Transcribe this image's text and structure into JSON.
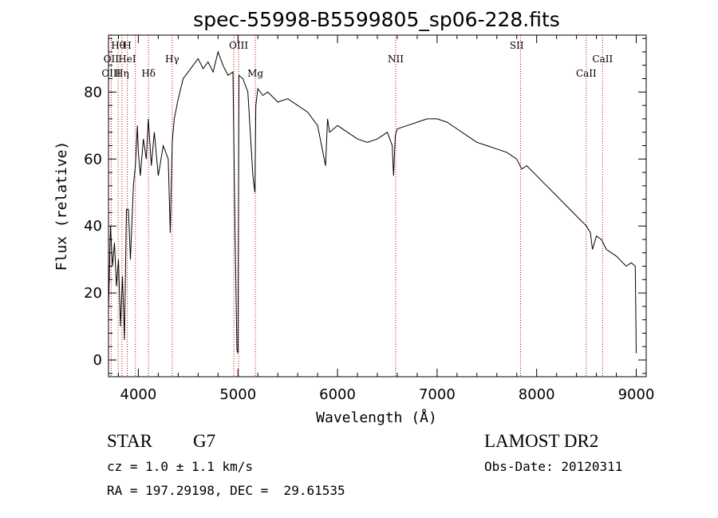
{
  "chart_data": {
    "type": "line",
    "title": "spec-55998-B5599805_sp06-228.fits",
    "xlabel": "Wavelength (Å)",
    "ylabel": "Flux (relative)",
    "xlim": [
      3700,
      9100
    ],
    "ylim": [
      -5,
      97
    ],
    "x_ticks": [
      4000,
      5000,
      6000,
      7000,
      8000,
      9000
    ],
    "y_ticks": [
      0,
      20,
      40,
      60,
      80
    ],
    "grid": false,
    "series": [
      {
        "x": [
          3700,
          3720,
          3740,
          3760,
          3780,
          3800,
          3820,
          3840,
          3860,
          3880,
          3900,
          3920,
          3950,
          3970,
          3990,
          4000,
          4020,
          4050,
          4080,
          4100,
          4130,
          4160,
          4200,
          4250,
          4300,
          4320,
          4340,
          4360,
          4400,
          4450,
          4500,
          4550,
          4600,
          4650,
          4700,
          4750,
          4800,
          4850,
          4900,
          4950,
          4970,
          4990,
          5000,
          5010,
          5050,
          5100,
          5150,
          5170,
          5180,
          5200,
          5250,
          5300,
          5400,
          5500,
          5600,
          5700,
          5800,
          5880,
          5900,
          5920,
          6000,
          6100,
          6200,
          6300,
          6400,
          6500,
          6550,
          6563,
          6580,
          6600,
          6700,
          6800,
          6900,
          7000,
          7100,
          7200,
          7300,
          7400,
          7500,
          7600,
          7700,
          7800,
          7850,
          7900,
          8000,
          8100,
          8200,
          8300,
          8400,
          8500,
          8540,
          8560,
          8600,
          8650,
          8700,
          8800,
          8900,
          8950,
          8990,
          9000
        ],
        "values": [
          15,
          40,
          28,
          35,
          22,
          30,
          10,
          25,
          6,
          45,
          45,
          30,
          52,
          58,
          70,
          62,
          55,
          66,
          60,
          72,
          58,
          68,
          55,
          64,
          60,
          38,
          65,
          72,
          78,
          84,
          86,
          88,
          90,
          87,
          89,
          86,
          92,
          88,
          85,
          86,
          40,
          3,
          2,
          85,
          84,
          80,
          55,
          50,
          76,
          81,
          79,
          80,
          77,
          78,
          76,
          74,
          70,
          58,
          72,
          68,
          70,
          68,
          66,
          65,
          66,
          68,
          64,
          55,
          67,
          69,
          70,
          71,
          72,
          72,
          71,
          69,
          67,
          65,
          64,
          63,
          62,
          60,
          57,
          58,
          55,
          52,
          49,
          46,
          43,
          40,
          38,
          33,
          37,
          36,
          33,
          31,
          28,
          29,
          28,
          2
        ]
      }
    ],
    "line_markers": [
      {
        "label": "Hθ",
        "x": 3797,
        "row": 1
      },
      {
        "label": "H",
        "x": 3889,
        "row": 1
      },
      {
        "label": "OII",
        "x": 3727,
        "row": 2
      },
      {
        "label": "HeI",
        "x": 3888,
        "row": 2
      },
      {
        "label": "Hγ",
        "x": 4340,
        "row": 2
      },
      {
        "label": "OIII",
        "x": 5007,
        "row": 1
      },
      {
        "label": "OIII",
        "x": 3727,
        "row": 3
      },
      {
        "label": "Hη",
        "x": 3835,
        "row": 3
      },
      {
        "label": "Hδ",
        "x": 4102,
        "row": 3
      },
      {
        "label": "Mg",
        "x": 5175,
        "row": 3
      },
      {
        "label": "NII",
        "x": 6584,
        "row": 2
      },
      {
        "label": "SII",
        "x": 7800,
        "row": 1
      },
      {
        "label": "CaII",
        "x": 8662,
        "row": 2
      },
      {
        "label": "CaII",
        "x": 8498,
        "row": 3
      }
    ],
    "marker_lines_x": [
      3727,
      3797,
      3835,
      3889,
      3970,
      4102,
      4340,
      4959,
      5007,
      5175,
      6584,
      7838,
      8498,
      8662
    ]
  },
  "info": {
    "object_class": "STAR",
    "subclass": "G7",
    "survey": "LAMOST DR2",
    "cz": "cz = 1.0 ± 1.1 km/s",
    "obs_date": "Obs-Date: 20120311",
    "coords": "RA = 197.29198, DEC =  29.61535"
  },
  "colors": {
    "spectrum": "#000000",
    "marker_lines": "#cc0000",
    "background": "#ffffff"
  }
}
